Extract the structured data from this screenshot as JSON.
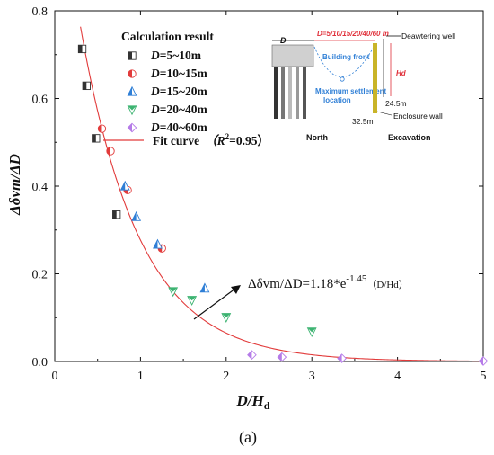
{
  "chart_data": {
    "type": "scatter",
    "xlim": [
      0,
      5
    ],
    "ylim": [
      0,
      0.8
    ],
    "x_ticks": [
      "0",
      "1",
      "2",
      "3",
      "4",
      "5"
    ],
    "y_ticks": [
      "0.0",
      "0.2",
      "0.4",
      "0.6",
      "0.8"
    ],
    "xlabel": "D/H",
    "xlabel_sub": "d",
    "ylabel": "Δδvm/ΔD",
    "legend_title": "Calculation result",
    "legend_placement": "top-left",
    "grid": false,
    "series": [
      {
        "name": "D=5~10m",
        "marker": "half-square",
        "color": "#333333",
        "points": [
          [
            0.32,
            0.713
          ],
          [
            0.37,
            0.629
          ],
          [
            0.48,
            0.509
          ],
          [
            0.72,
            0.335
          ]
        ]
      },
      {
        "name": "D=10~15m",
        "marker": "half-circle",
        "color": "#e23b3b",
        "points": [
          [
            0.55,
            0.531
          ],
          [
            0.65,
            0.48
          ],
          [
            0.85,
            0.391
          ],
          [
            1.25,
            0.258
          ]
        ]
      },
      {
        "name": "D=15~20m",
        "marker": "half-triangle-up",
        "color": "#2f7fd6",
        "points": [
          [
            0.82,
            0.4
          ],
          [
            0.95,
            0.33
          ],
          [
            1.2,
            0.267
          ],
          [
            1.75,
            0.167
          ]
        ]
      },
      {
        "name": "D=20~40m",
        "marker": "half-triangle-down",
        "color": "#3cb371",
        "points": [
          [
            1.38,
            0.16
          ],
          [
            1.6,
            0.14
          ],
          [
            2.0,
            0.101
          ],
          [
            3.0,
            0.068
          ]
        ]
      },
      {
        "name": "D=40~60m",
        "marker": "half-diamond",
        "color": "#b57be8",
        "points": [
          [
            2.3,
            0.015
          ],
          [
            2.65,
            0.01
          ],
          [
            3.35,
            0.007
          ],
          [
            5.0,
            0.001
          ]
        ]
      }
    ],
    "fit_curve": {
      "name": "Fit curve",
      "r2_label": "（R",
      "r2_value": "=0.95）",
      "color": "#e23b3b",
      "a": 1.18,
      "b": -1.45,
      "equation_lhs": "Δδvm/ΔD=1.18*e",
      "equation_exp": "-1.45",
      "equation_tail": "（D/Hd）"
    }
  },
  "inset": {
    "d_label": "D",
    "distance_label": "D=5/10/15/20/40/60 m",
    "dewatering_well": "Deawtering well",
    "building_front": "Building front",
    "max_settlement_line1": "Maximum settlement",
    "max_settlement_line2": "location",
    "hd_label": "Hd",
    "depth_24": "24.5m",
    "depth_32": "32.5m",
    "enclosure_wall": "Enclosure wall",
    "north": "North",
    "excavation": "Excavation"
  },
  "figure_label": "(a)"
}
